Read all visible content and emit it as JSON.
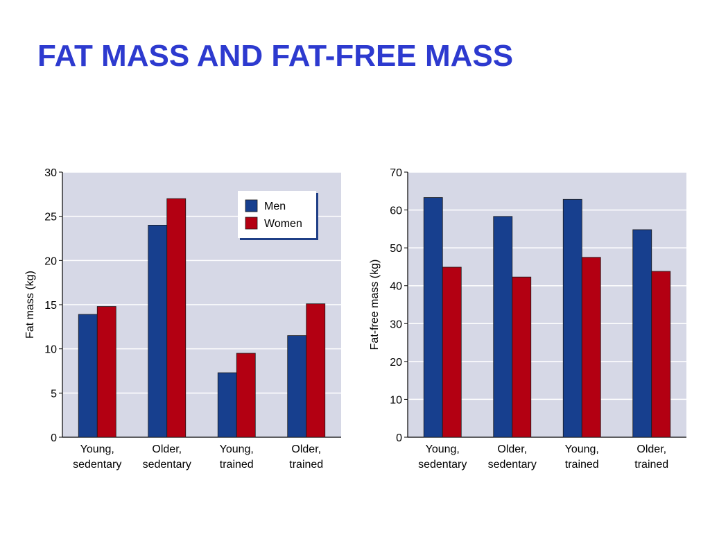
{
  "slide": {
    "title": "FAT MASS AND FAT-FREE MASS"
  },
  "colors": {
    "title": "#2d3acf",
    "plot_background": "#d6d8e6",
    "men": "#173f8e",
    "women": "#b30012",
    "gridline": "#ffffff",
    "axis": "#000000"
  },
  "legend": {
    "items": [
      "Men",
      "Women"
    ],
    "placement": "top-right of left chart"
  },
  "chart_data": [
    {
      "type": "bar",
      "title": "",
      "xlabel": "",
      "ylabel": "Fat mass (kg)",
      "ylim": [
        0,
        30
      ],
      "yticks": [
        "0",
        "5",
        "10",
        "15",
        "20",
        "25",
        "30"
      ],
      "categories": [
        [
          "Young,",
          "sedentary"
        ],
        [
          "Older,",
          "sedentary"
        ],
        [
          "Young,",
          "trained"
        ],
        [
          "Older,",
          "trained"
        ]
      ],
      "series": [
        {
          "name": "Men",
          "values": [
            13.9,
            24.0,
            7.3,
            11.5
          ]
        },
        {
          "name": "Women",
          "values": [
            14.8,
            27.0,
            9.5,
            15.1
          ]
        }
      ],
      "grid": true,
      "legend": "top-right"
    },
    {
      "type": "bar",
      "title": "",
      "xlabel": "",
      "ylabel": "Fat-free mass (kg)",
      "ylim": [
        0,
        70
      ],
      "yticks": [
        "0",
        "10",
        "20",
        "30",
        "40",
        "50",
        "60",
        "70"
      ],
      "categories": [
        [
          "Young,",
          "sedentary"
        ],
        [
          "Older,",
          "sedentary"
        ],
        [
          "Young,",
          "trained"
        ],
        [
          "Older,",
          "trained"
        ]
      ],
      "series": [
        {
          "name": "Men",
          "values": [
            63.3,
            58.3,
            62.8,
            54.8
          ]
        },
        {
          "name": "Women",
          "values": [
            44.9,
            42.3,
            47.5,
            43.8
          ]
        }
      ],
      "grid": true
    }
  ]
}
